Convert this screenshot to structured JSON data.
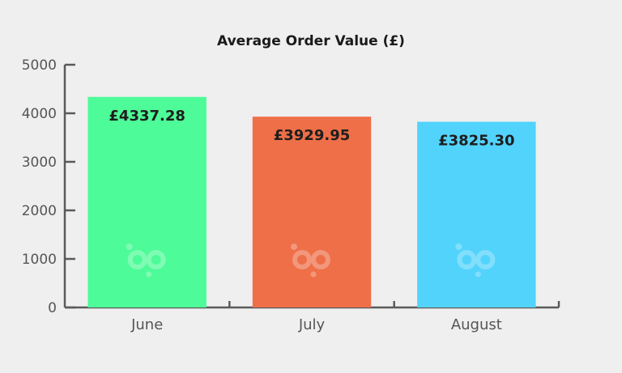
{
  "chart_data": {
    "type": "bar",
    "title": "Average Order Value (£)",
    "categories": [
      "June",
      "July",
      "August"
    ],
    "values": [
      4337.28,
      3929.95,
      3825.3
    ],
    "data_labels": [
      "£4337.28",
      "£3929.95",
      "£3825.30"
    ],
    "bar_colors": [
      "#4dfb98",
      "#ee6f48",
      "#52d3fc"
    ],
    "xlabel": "",
    "ylabel": "",
    "ylim": [
      0,
      5000
    ],
    "yticks": [
      0,
      1000,
      2000,
      3000,
      4000,
      5000
    ],
    "grid": false,
    "legend": "none",
    "watermark_icon": "bp-logo-icon"
  }
}
